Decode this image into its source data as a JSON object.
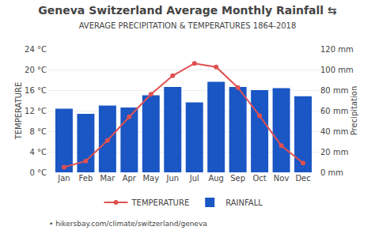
{
  "chart_data": {
    "type": "bar",
    "title": "Geneva Switzerland Average Monthly Rainfall ⇆",
    "subtitle": "AVERAGE PRECIPITATION & TEMPERATURES 1864-2018",
    "ylabel": "TEMPERATURE",
    "y2label": "Precipitation",
    "categories": [
      "Jan",
      "Feb",
      "Mar",
      "Apr",
      "May",
      "Jun",
      "Jul",
      "Aug",
      "Sep",
      "Oct",
      "Nov",
      "Dec"
    ],
    "series": [
      {
        "name": "RAINFALL",
        "type": "bar",
        "color": "#1a56c4",
        "axis": "y2",
        "values": [
          62,
          57,
          65,
          63,
          75,
          83,
          68,
          88,
          83,
          80,
          82,
          74
        ]
      },
      {
        "name": "TEMPERATURE",
        "type": "line",
        "color": "#e05050",
        "marker": "circle",
        "values": [
          1.0,
          2.2,
          6.2,
          10.8,
          15.2,
          18.8,
          21.2,
          20.5,
          16.5,
          11.0,
          5.2,
          1.8
        ]
      }
    ],
    "ylim": [
      0,
      24
    ],
    "yticks": [
      {
        "value": 0,
        "label": "0 °C"
      },
      {
        "value": 4,
        "label": "4 °C"
      },
      {
        "value": 8,
        "label": "8 °C"
      },
      {
        "value": 12,
        "label": "12 °C"
      },
      {
        "value": 16,
        "label": "16 °C"
      },
      {
        "value": 20,
        "label": "20 °C"
      },
      {
        "value": 24,
        "label": "24 °C"
      }
    ],
    "y2lim": [
      0,
      120
    ],
    "y2ticks": [
      {
        "value": 0,
        "label": "0 mm"
      },
      {
        "value": 20,
        "label": "20 mm"
      },
      {
        "value": 40,
        "label": "40 mm"
      },
      {
        "value": 60,
        "label": "60 mm"
      },
      {
        "value": 80,
        "label": "80 mm"
      },
      {
        "value": 100,
        "label": "100 mm"
      },
      {
        "value": 120,
        "label": "120 mm"
      }
    ],
    "grid": true,
    "legend": "bottom",
    "annotations": [
      "• hikersbay.com/climate/switzerland/geneva"
    ]
  }
}
